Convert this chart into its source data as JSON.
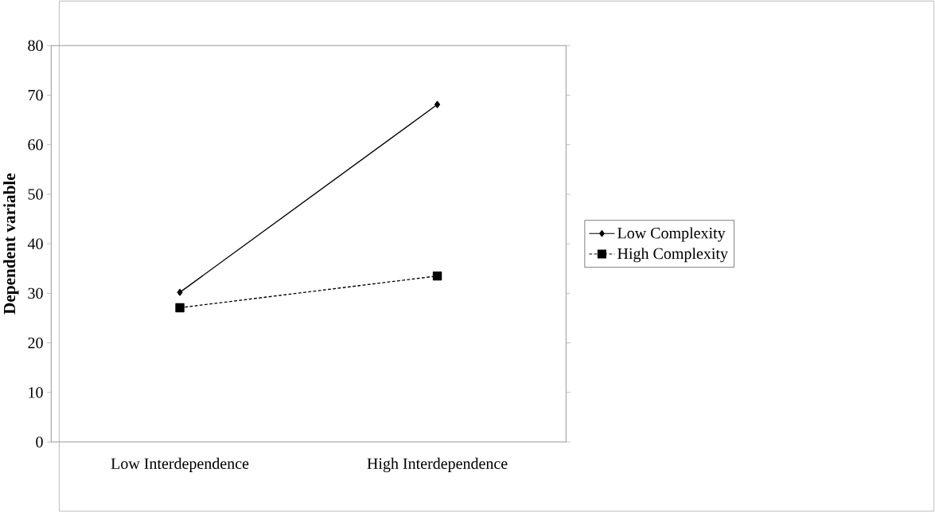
{
  "chart_data": {
    "type": "line",
    "ylabel": "Dependent variable",
    "categories": [
      "Low Interdependence",
      "High Interdependence"
    ],
    "series": [
      {
        "name": "Low Complexity",
        "color": "#000000",
        "values": [
          30.2,
          68.1
        ],
        "marker": "diamond",
        "line_style": "solid"
      },
      {
        "name": "High Complexity",
        "color": "#000000",
        "values": [
          27.1,
          33.5
        ],
        "marker": "square",
        "line_style": "dashed"
      }
    ],
    "ylim": [
      0,
      80
    ],
    "yticks": [
      0,
      10,
      20,
      30,
      40,
      50,
      60,
      70,
      80
    ],
    "grid": false,
    "legend": "right"
  }
}
